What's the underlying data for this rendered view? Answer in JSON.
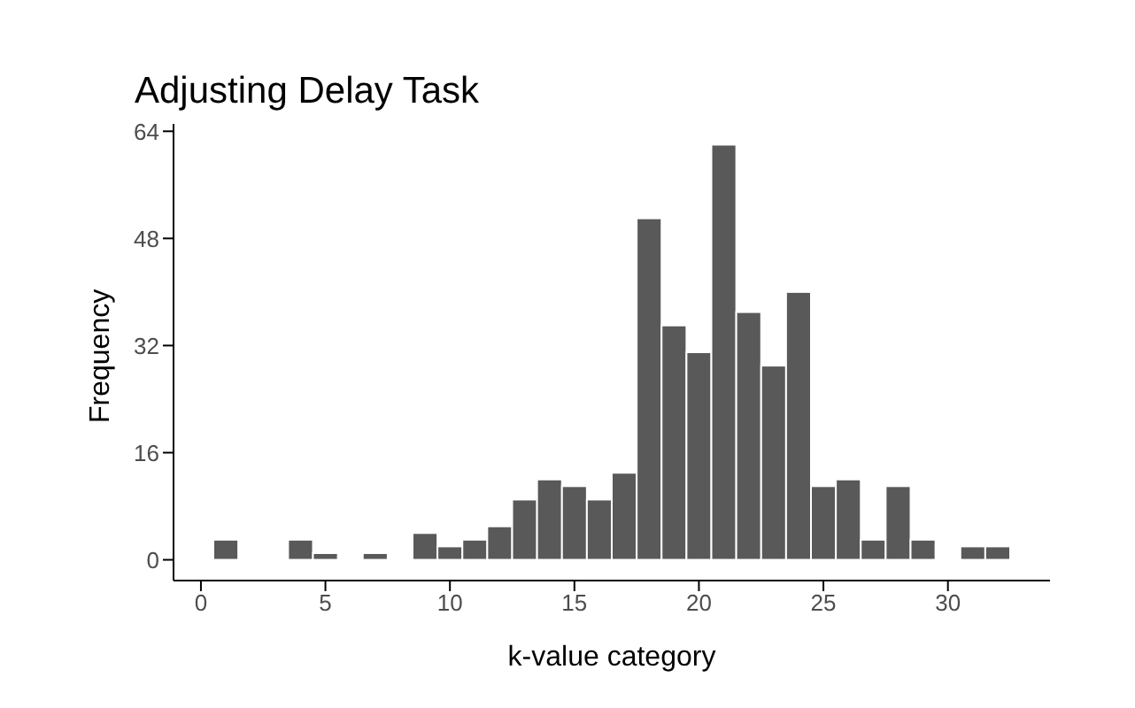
{
  "chart_data": {
    "type": "histogram",
    "title": "Adjusting Delay Task",
    "xlabel": "k-value category",
    "ylabel": "Frequency",
    "bins": [
      0.5,
      1.5,
      2.5,
      3.5,
      4.5,
      5.5,
      6.5,
      7.5,
      8.5,
      9.5,
      10.5,
      11.5,
      12.5,
      13.5,
      14.5,
      15.5,
      16.5,
      17.5,
      18.5,
      19.5,
      20.5,
      21.5,
      22.5,
      23.5,
      24.5,
      25.5,
      26.5,
      27.5,
      28.5,
      29.5,
      30.5,
      31.5,
      32.5
    ],
    "values": [
      3,
      0,
      0,
      3,
      1,
      0,
      1,
      0,
      4,
      2,
      3,
      5,
      9,
      12,
      11,
      9,
      13,
      51,
      35,
      31,
      62,
      37,
      29,
      40,
      11,
      12,
      3,
      11,
      3,
      0,
      2,
      2
    ],
    "color": "#595959",
    "xlim": [
      -1.1,
      34.1
    ],
    "xticks": [
      0,
      5,
      10,
      15,
      20,
      25,
      30
    ],
    "ylim": [
      -3.1,
      65.1
    ],
    "yticks": [
      0,
      16,
      32,
      48,
      64
    ],
    "grid": false,
    "legend": false
  }
}
